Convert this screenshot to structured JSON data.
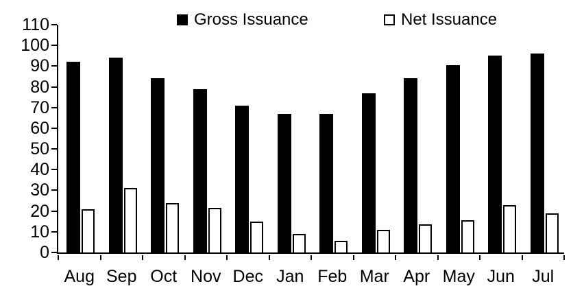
{
  "chart_data": {
    "type": "bar",
    "title": "",
    "categories": [
      "Aug",
      "Sep",
      "Oct",
      "Nov",
      "Dec",
      "Jan",
      "Feb",
      "Mar",
      "Apr",
      "May",
      "Jun",
      "Jul"
    ],
    "series": [
      {
        "name": "Gross Issuance",
        "fill": "#000000",
        "outline": "#000000",
        "values": [
          92,
          94,
          84,
          79,
          71,
          67,
          67,
          77,
          84,
          90.5,
          95,
          96
        ]
      },
      {
        "name": "Net Issuance",
        "fill": "#ffffff",
        "outline": "#000000",
        "values": [
          21,
          31,
          24,
          21.5,
          15,
          9,
          5.5,
          11,
          13.5,
          15.5,
          23,
          19
        ]
      }
    ],
    "xlabel": "",
    "ylabel": "",
    "ylim": [
      0,
      110
    ],
    "ytick_step": 10,
    "yticklabels": [
      "0",
      "10",
      "20",
      "30",
      "40",
      "50",
      "60",
      "70",
      "80",
      "90",
      "100",
      "110"
    ],
    "grid": false,
    "legend_position": "top"
  },
  "legend": {
    "gross_label": "Gross Issuance",
    "net_label": "Net Issuance"
  },
  "colors": {
    "axis": "#000000",
    "text": "#000000",
    "gross_bar": "#000000",
    "net_bar_fill": "#ffffff",
    "net_bar_outline": "#000000",
    "background": "#ffffff"
  }
}
